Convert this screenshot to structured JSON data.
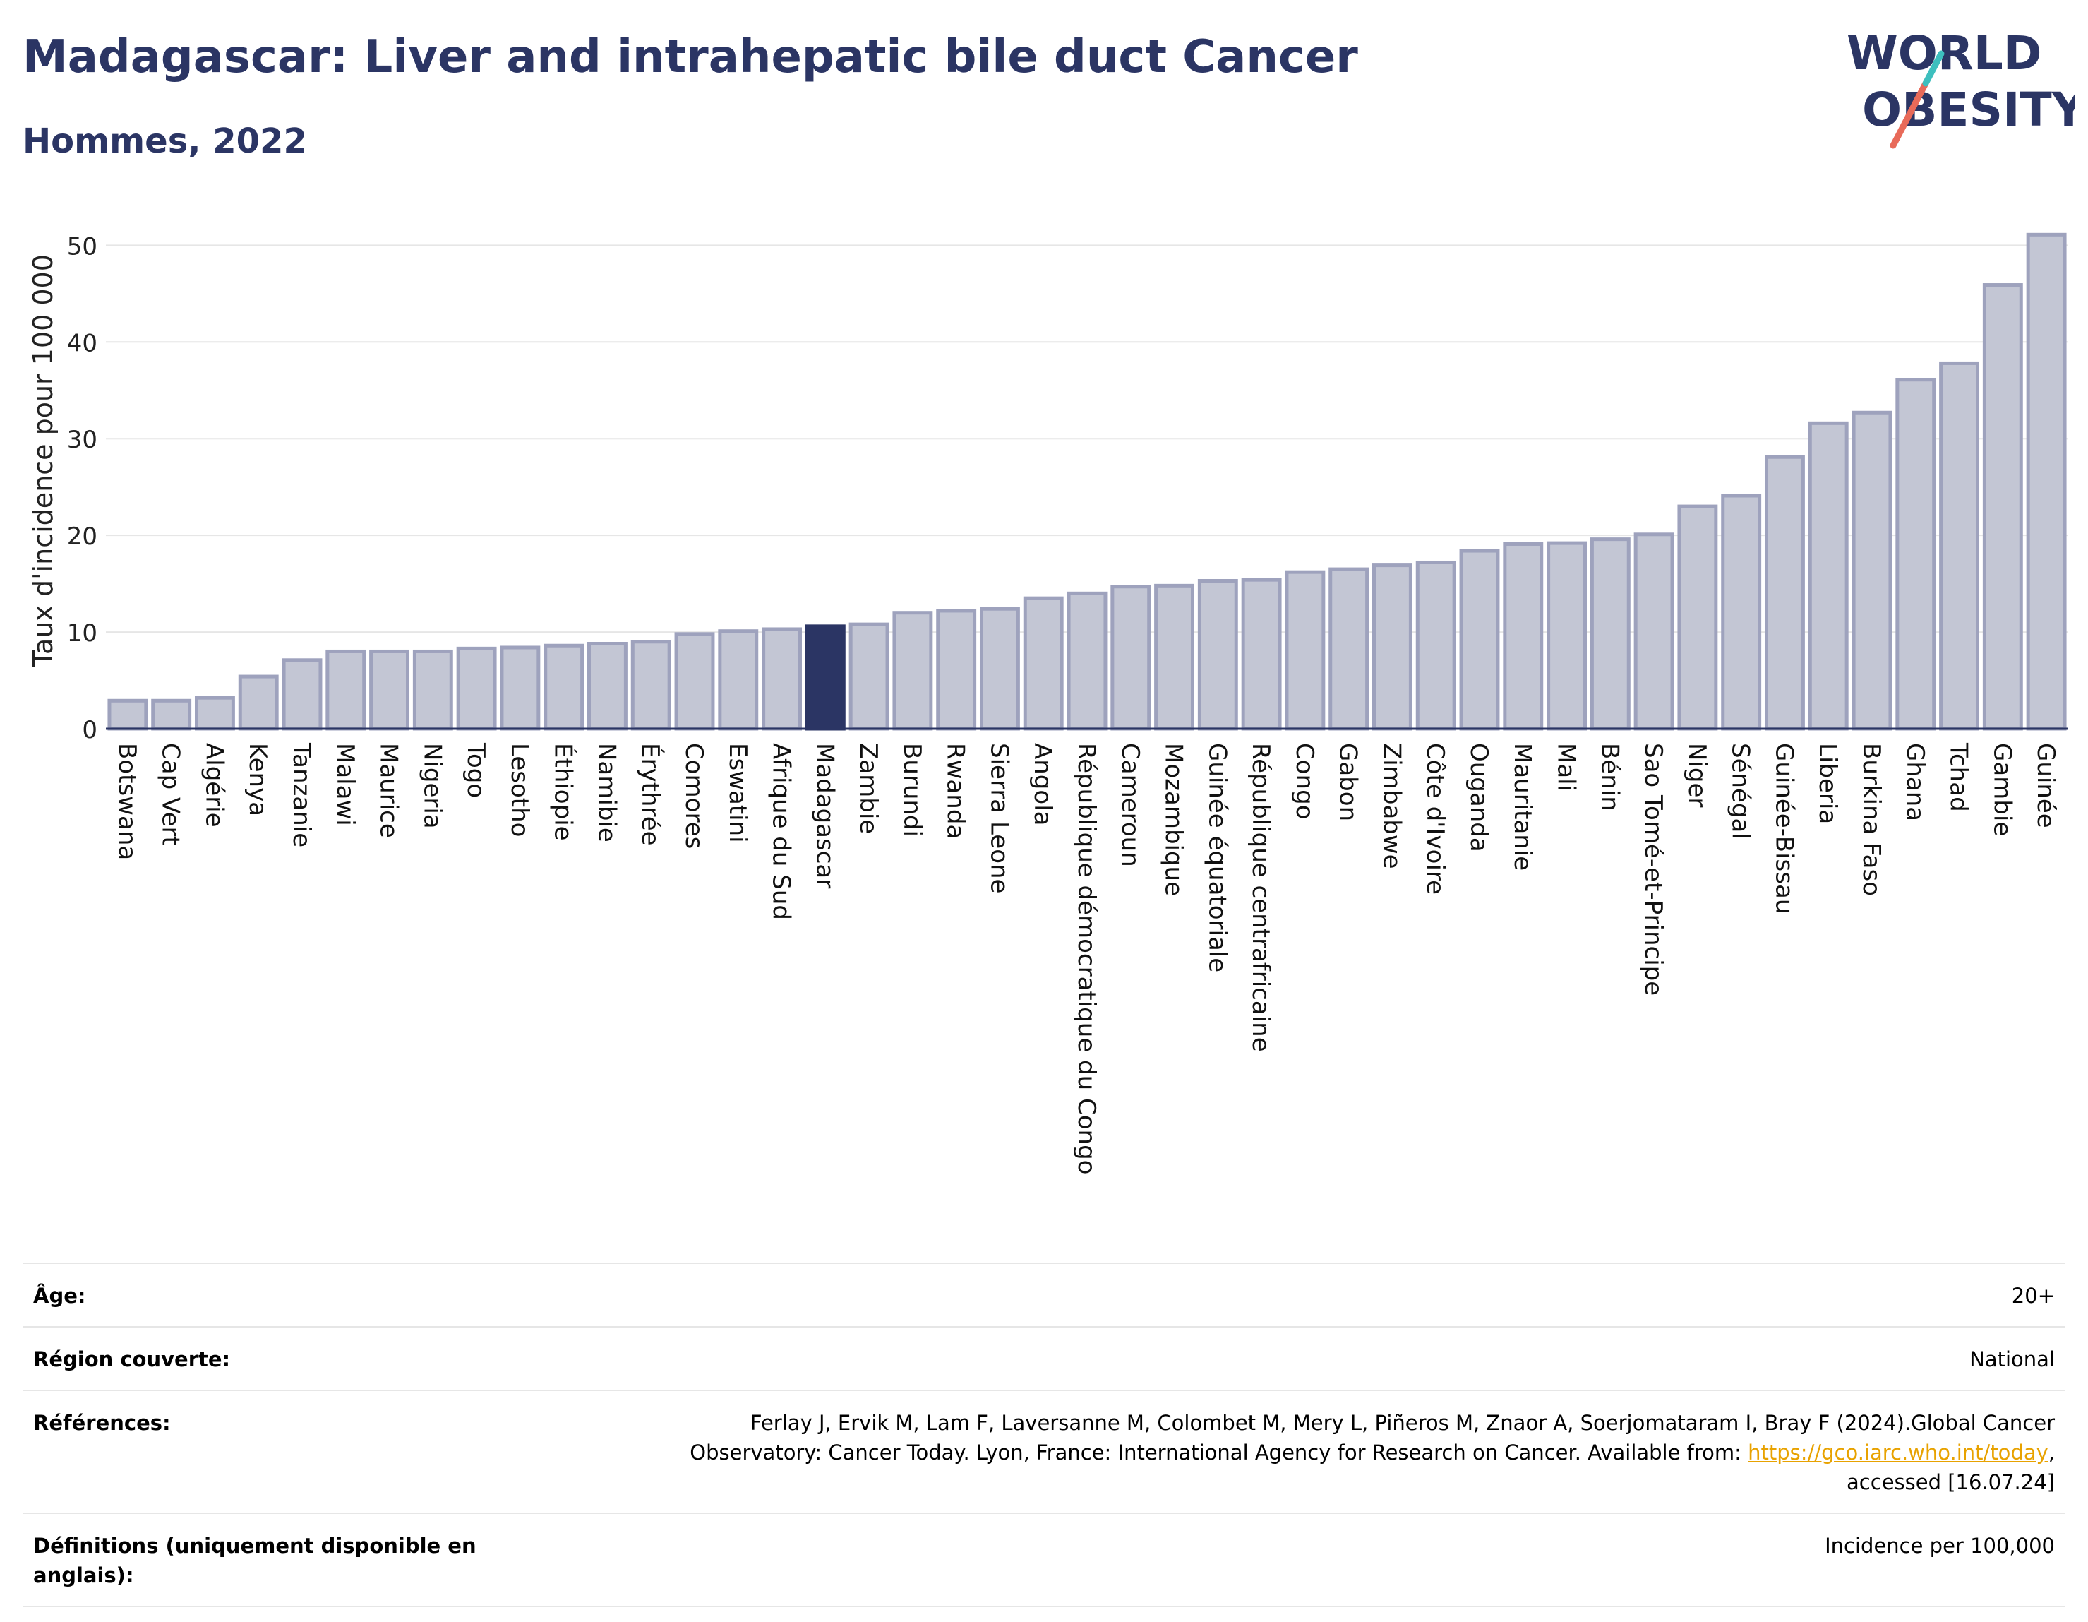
{
  "header": {
    "title": "Madagascar: Liver and intrahepatic bile duct Cancer",
    "subtitle": "Hommes, 2022",
    "logo_line1": "WORLD",
    "logo_line2": "OBESITY"
  },
  "colors": {
    "title": "#2b3564",
    "bar_fill": "#c3c6d4",
    "bar_stroke": "#9ea2bd",
    "highlight": "#2b3564",
    "logo_slash_red": "#e86a59",
    "logo_slash_teal": "#3dbfbe",
    "link": "#e8a200"
  },
  "chart_data": {
    "type": "bar",
    "ylabel": "Taux d'incidence pour 100 000",
    "xlabel": "",
    "ylim": [
      0,
      52
    ],
    "yticks": [
      0,
      10,
      20,
      30,
      40,
      50
    ],
    "grid": true,
    "highlight": "Madagascar",
    "categories": [
      "Botswana",
      "Cap Vert",
      "Algérie",
      "Kenya",
      "Tanzanie",
      "Malawi",
      "Maurice",
      "Nigeria",
      "Togo",
      "Lesotho",
      "Éthiopie",
      "Namibie",
      "Érythrée",
      "Comores",
      "Eswatini",
      "Afrique du Sud",
      "Madagascar",
      "Zambie",
      "Burundi",
      "Rwanda",
      "Sierra Leone",
      "Angola",
      "République démocratique du Congo",
      "Cameroun",
      "Mozambique",
      "Guinée équatoriale",
      "République centrafricaine",
      "Congo",
      "Gabon",
      "Zimbabwe",
      "Côte d'Ivoire",
      "Ouganda",
      "Mauritanie",
      "Mali",
      "Bénin",
      "Sao Tomé-et-Principe",
      "Niger",
      "Sénégal",
      "Guinée-Bissau",
      "Liberia",
      "Burkina Faso",
      "Ghana",
      "Tchad",
      "Gambie",
      "Guinée"
    ],
    "values": [
      2.9,
      2.9,
      3.2,
      5.4,
      7.1,
      8.0,
      8.0,
      8.0,
      8.3,
      8.4,
      8.6,
      8.8,
      9.0,
      9.8,
      10.1,
      10.3,
      10.6,
      10.8,
      12.0,
      12.2,
      12.4,
      13.5,
      14.0,
      14.7,
      14.8,
      15.3,
      15.4,
      16.2,
      16.5,
      16.9,
      17.2,
      18.4,
      19.1,
      19.2,
      19.6,
      20.1,
      23.0,
      24.1,
      28.1,
      31.6,
      32.7,
      36.1,
      37.8,
      45.9,
      51.1
    ]
  },
  "info": {
    "age_label": "Âge:",
    "age_value": "20+",
    "region_label": "Région couverte:",
    "region_value": "National",
    "refs_label": "Références:",
    "refs_text_1": "Ferlay J, Ervik M, Lam F, Laversanne M, Colombet M, Mery L, Piñeros M, Znaor A, Soerjomataram I, Bray F (2024).Global Cancer",
    "refs_text_2": "Observatory: Cancer Today. Lyon, France: International Agency for Research on Cancer. Available from: ",
    "refs_link": "https://gco.iarc.who.int/today",
    "refs_text_3": ",",
    "refs_text_4": "accessed [16.07.24]",
    "defs_label": "Définitions (uniquement disponible en anglais):",
    "defs_value": "Incidence per 100,000"
  }
}
